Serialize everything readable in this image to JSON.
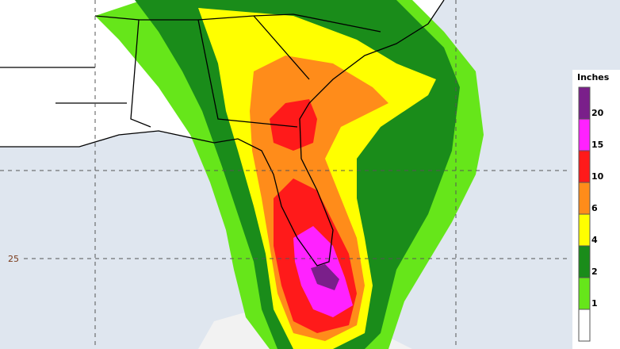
{
  "map": {
    "lat_label": "25",
    "legend": {
      "title": "Inches",
      "items": [
        {
          "label": "20",
          "color": "#ff22ff"
        },
        {
          "label": "15",
          "color": "#ff1a1a"
        },
        {
          "label": "10",
          "color": "#ff8c1a"
        },
        {
          "label": "6",
          "color": "#ffff00"
        },
        {
          "label": "4",
          "color": "#1a8c1a"
        },
        {
          "label": "2",
          "color": "#66e61a"
        },
        {
          "label": "1",
          "color": "#ffffff"
        }
      ],
      "top_color": "#7a1f8a"
    }
  }
}
